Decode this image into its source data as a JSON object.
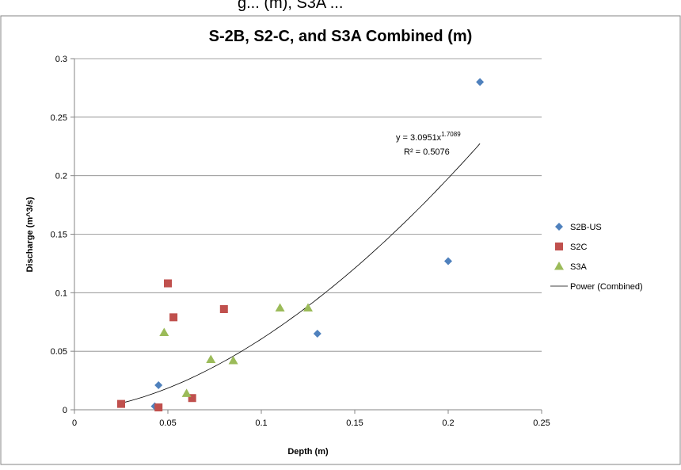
{
  "page_header": "g... (m), S3A ...",
  "colors": {
    "s2b": "#4F81BD",
    "s2c": "#C0504D",
    "s3a": "#9BBB59",
    "trend": "#000000"
  },
  "chart_data": {
    "type": "scatter",
    "title": "S-2B, S2-C, and S3A Combined (m)",
    "xlabel": "Depth (m)",
    "ylabel": "Discharge (m^3/s)",
    "xlim": [
      0,
      0.25
    ],
    "ylim": [
      0,
      0.3
    ],
    "xticks": [
      "0",
      "0.05",
      "0.1",
      "0.15",
      "0.2",
      "0.25"
    ],
    "yticks": [
      "0",
      "0.05",
      "0.1",
      "0.15",
      "0.2",
      "0.25",
      "0.3"
    ],
    "grid": "horizontal",
    "legend_position": "right",
    "series": [
      {
        "name": "S2B-US",
        "marker": "diamond",
        "color": "#4F81BD",
        "points": [
          [
            0.043,
            0.003
          ],
          [
            0.045,
            0.021
          ],
          [
            0.13,
            0.065
          ],
          [
            0.2,
            0.127
          ],
          [
            0.217,
            0.28
          ]
        ]
      },
      {
        "name": "S2C",
        "marker": "square",
        "color": "#C0504D",
        "points": [
          [
            0.025,
            0.005
          ],
          [
            0.045,
            0.002
          ],
          [
            0.05,
            0.108
          ],
          [
            0.053,
            0.079
          ],
          [
            0.063,
            0.01
          ],
          [
            0.08,
            0.086
          ]
        ]
      },
      {
        "name": "S3A",
        "marker": "triangle",
        "color": "#9BBB59",
        "points": [
          [
            0.048,
            0.066
          ],
          [
            0.06,
            0.014
          ],
          [
            0.073,
            0.043
          ],
          [
            0.085,
            0.042
          ],
          [
            0.11,
            0.087
          ],
          [
            0.125,
            0.087
          ]
        ]
      }
    ],
    "trendline": {
      "name": "Power (Combined)",
      "a": 3.0951,
      "b": 1.7089,
      "x_range": [
        0.025,
        0.217
      ],
      "equation_prefix": "y = 3.0951x",
      "equation_exp": "1.7089",
      "r2_label": "R² = 0.5076"
    }
  }
}
